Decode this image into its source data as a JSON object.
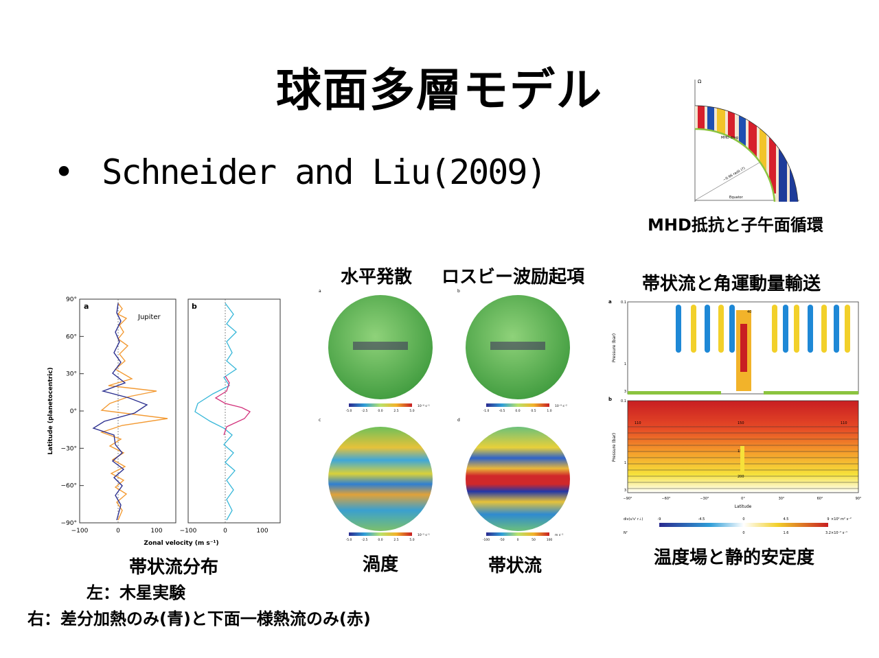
{
  "slide": {
    "title": "球面多層モデル",
    "bullet": "Schneider and Liu(2009)"
  },
  "captions": {
    "mhd": "MHD抵抗と子午面循環",
    "diffusion": "水平発散",
    "rossby": "ロスビー波励起項",
    "zonal_am": "帯状流と角運動量輸送",
    "vorticity": "渦度",
    "zonal_flow": "帯状流",
    "temperature": "温度場と静的安定度",
    "profile": "帯状流分布",
    "left_note": "左：木星実験",
    "right_note": "右：差分加熱のみ(青)と下面一様熱流のみ(赤)"
  },
  "profile_figure": {
    "panel_a": "a",
    "panel_b": "b",
    "legend": "Jupiter",
    "ylabel": "Latitude (planetocentric)",
    "xlabel": "Zonal velocity (m s⁻¹)",
    "yticks": [
      "90°",
      "60°",
      "30°",
      "0°",
      "−30°",
      "−60°",
      "−90°"
    ],
    "xticks_a": [
      "−100",
      "0",
      "100"
    ],
    "xticks_b": [
      "−100",
      "0",
      "100"
    ],
    "colors": {
      "model": "#2b2f8f",
      "jupiter": "#f39a33",
      "blue_run": "#35b6d8",
      "red_run": "#d2307a"
    }
  },
  "mhd_figure": {
    "omega": "Ω",
    "drag": "MHD drag",
    "radius": "~0.96 radii (?)",
    "equator": "Equator"
  },
  "sphere_figure": {
    "labels": [
      "a",
      "b",
      "c",
      "d"
    ],
    "colorbars": [
      {
        "ticks": [
          "-5.0",
          "-2.5",
          "0.0",
          "2.5",
          "5.0"
        ],
        "unit": "10⁻⁶ s⁻¹"
      },
      {
        "ticks": [
          "-1.0",
          "-0.5",
          "0.0",
          "0.5",
          "1.0"
        ],
        "unit": "10⁻⁹ s⁻²"
      },
      {
        "ticks": [
          "-5.0",
          "-2.5",
          "0.0",
          "2.5",
          "5.0"
        ],
        "unit": "10⁻⁵ s⁻¹"
      },
      {
        "ticks": [
          "-100",
          "-50",
          "0",
          "50",
          "100"
        ],
        "unit": "m s⁻¹"
      }
    ]
  },
  "section_figure": {
    "panel_a": "a",
    "panel_b": "b",
    "ylabel": "Pressure (bar)",
    "xlabel": "Latitude",
    "pressure_ticks": [
      "0.1",
      "1",
      "3"
    ],
    "lat_ticks": [
      "−90°",
      "−60°",
      "−30°",
      "0°",
      "30°",
      "60°",
      "90°"
    ],
    "contour_labels": [
      "40",
      "110",
      "150",
      "110",
      "150",
      "200"
    ],
    "cb1": {
      "label": "div(u'v' r⊥)",
      "ticks": [
        "-9",
        "-4.5",
        "0",
        "4.5",
        "9"
      ],
      "unit": "×10² m² s⁻²"
    },
    "cb2": {
      "label": "N²",
      "ticks": [
        "0",
        "1.6",
        "3.2"
      ],
      "unit": "×10⁻² s⁻¹"
    }
  }
}
